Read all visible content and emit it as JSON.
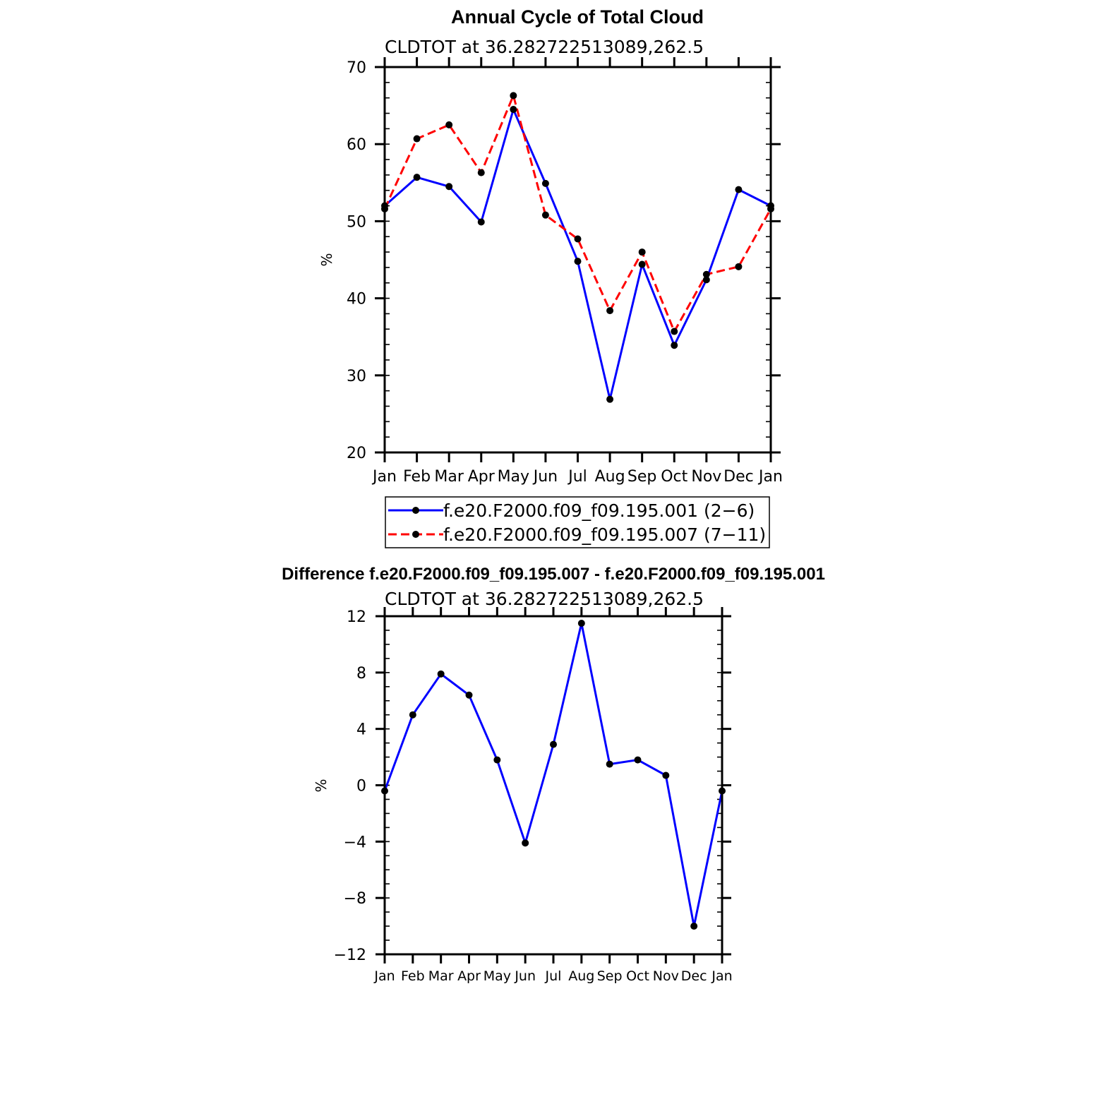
{
  "chart_data": [
    {
      "type": "line",
      "title": "Annual Cycle of Total Cloud",
      "subtitle": "CLDTOT at 36.282722513089,262.5",
      "ylabel": "%",
      "ylim": [
        20,
        70
      ],
      "yticks": [
        20,
        30,
        40,
        50,
        60,
        70
      ],
      "categories": [
        "Jan",
        "Feb",
        "Mar",
        "Apr",
        "May",
        "Jun",
        "Jul",
        "Aug",
        "Sep",
        "Oct",
        "Nov",
        "Dec",
        "Jan"
      ],
      "legend_position": "bottom",
      "series": [
        {
          "name": "f.e20.F2000.f09_f09.195.001 (2−6)",
          "color": "#0000ff",
          "dash": "solid",
          "values": [
            52.0,
            55.7,
            54.5,
            49.9,
            64.5,
            54.9,
            44.8,
            26.9,
            44.4,
            33.9,
            42.4,
            54.1,
            52.0
          ]
        },
        {
          "name": "f.e20.F2000.f09_f09.195.007 (7−11)",
          "color": "#ff0000",
          "dash": "dashed",
          "values": [
            51.6,
            60.7,
            62.5,
            56.3,
            66.3,
            50.8,
            47.7,
            38.4,
            46.0,
            35.7,
            43.1,
            44.1,
            51.6
          ]
        }
      ]
    },
    {
      "type": "line",
      "title": "Difference f.e20.F2000.f09_f09.195.007 - f.e20.F2000.f09_f09.195.001",
      "subtitle": "CLDTOT at 36.282722513089,262.5",
      "ylabel": "%",
      "ylim": [
        -12,
        12
      ],
      "yticks": [
        -12,
        -8,
        -4,
        0,
        4,
        8,
        12
      ],
      "ytick_labels": [
        "−12",
        "−8",
        "−4",
        "0",
        "4",
        "8",
        "12"
      ],
      "categories": [
        "Jan",
        "Feb",
        "Mar",
        "Apr",
        "May",
        "Jun",
        "Jul",
        "Aug",
        "Sep",
        "Oct",
        "Nov",
        "Dec",
        "Jan"
      ],
      "series": [
        {
          "color": "#0000ff",
          "dash": "solid",
          "values": [
            -0.4,
            5.0,
            7.9,
            6.4,
            1.8,
            -4.1,
            2.9,
            11.5,
            1.5,
            1.8,
            0.7,
            -10.0,
            -0.4
          ]
        }
      ]
    }
  ]
}
